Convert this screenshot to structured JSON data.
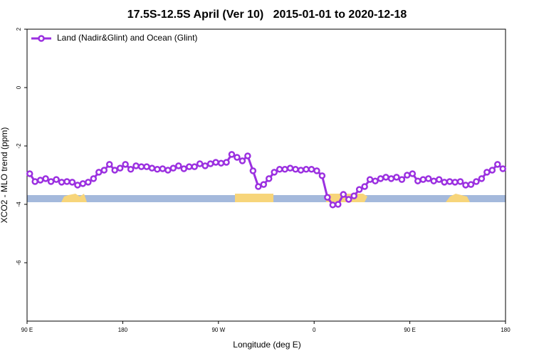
{
  "chart_data": {
    "type": "line",
    "title": "17.5S-12.5S April (Ver 10)   2015-01-01 to 2020-12-18",
    "x_label": "Longitude (deg E)",
    "y_label": "XCO2 - MLO trend (ppm)",
    "xlim": [
      90,
      540
    ],
    "xticks": [
      {
        "value": 90,
        "label": "90 E"
      },
      180,
      {
        "value": 270,
        "label": "90 W"
      },
      {
        "value": 360,
        "label": "0"
      },
      {
        "value": 450,
        "label": "90 E"
      },
      {
        "value": 540,
        "label": "180"
      }
    ],
    "ylim": [
      -8,
      2
    ],
    "yticks": [
      2,
      0,
      -2,
      -4,
      -6
    ],
    "legend": "top-left",
    "x": [
      92.5,
      97.5,
      102.5,
      107.5,
      112.5,
      117.5,
      122.5,
      127.5,
      132.5,
      137.5,
      142.5,
      147.5,
      152.5,
      157.5,
      162.5,
      167.5,
      172.5,
      177.5,
      182.5,
      187.5,
      192.5,
      197.5,
      202.5,
      207.5,
      212.5,
      217.5,
      222.5,
      227.5,
      232.5,
      237.5,
      242.5,
      247.5,
      252.5,
      257.5,
      262.5,
      267.5,
      272.5,
      277.5,
      282.5,
      287.5,
      292.5,
      297.5,
      302.5,
      307.5,
      312.5,
      317.5,
      322.5,
      327.5,
      332.5,
      337.5,
      342.5,
      347.5,
      352.5,
      357.5,
      362.5,
      367.5,
      372.5,
      377.5,
      382.5,
      387.5,
      392.5,
      397.5,
      402.5,
      407.5,
      412.5,
      417.5,
      422.5,
      427.5,
      432.5,
      437.5,
      442.5,
      447.5,
      452.5,
      457.5,
      462.5,
      467.5,
      472.5,
      477.5,
      482.5,
      487.5,
      492.5,
      497.5,
      502.5,
      507.5,
      512.5,
      517.5,
      522.5,
      527.5,
      532.5,
      537.5
    ],
    "series": [
      {
        "name": "Land (Nadir&Glint) and Ocean (Glint)",
        "color": "#9b30e0",
        "values": [
          -2.95,
          -3.22,
          -3.17,
          -3.12,
          -3.22,
          -3.15,
          -3.24,
          -3.22,
          -3.24,
          -3.34,
          -3.29,
          -3.24,
          -3.12,
          -2.9,
          -2.83,
          -2.63,
          -2.83,
          -2.76,
          -2.63,
          -2.8,
          -2.68,
          -2.71,
          -2.71,
          -2.76,
          -2.8,
          -2.78,
          -2.83,
          -2.76,
          -2.68,
          -2.78,
          -2.71,
          -2.71,
          -2.61,
          -2.68,
          -2.61,
          -2.56,
          -2.59,
          -2.56,
          -2.29,
          -2.39,
          -2.51,
          -2.34,
          -2.85,
          -3.39,
          -3.32,
          -3.12,
          -2.9,
          -2.8,
          -2.8,
          -2.76,
          -2.8,
          -2.83,
          -2.8,
          -2.8,
          -2.85,
          -3.02,
          -3.76,
          -4.02,
          -4.0,
          -3.66,
          -3.83,
          -3.71,
          -3.49,
          -3.39,
          -3.15,
          -3.2,
          -3.12,
          -3.07,
          -3.12,
          -3.07,
          -3.15,
          -3.0,
          -2.95,
          -3.2,
          -3.15,
          -3.12,
          -3.2,
          -3.15,
          -3.24,
          -3.22,
          -3.24,
          -3.22,
          -3.34,
          -3.32,
          -3.22,
          -3.12,
          -2.9,
          -2.83,
          -2.63,
          -2.78
        ]
      }
    ]
  }
}
